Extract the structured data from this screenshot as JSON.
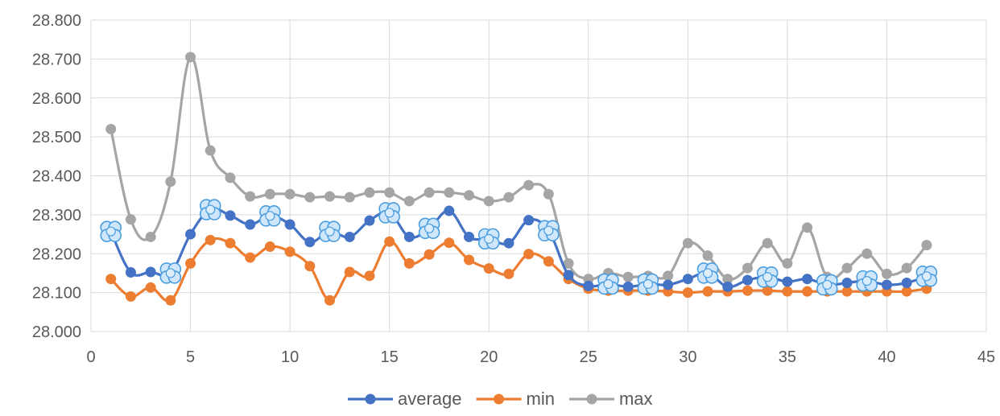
{
  "chart_data": {
    "type": "line",
    "title": "",
    "xlabel": "",
    "ylabel": "",
    "xlim": [
      0,
      45
    ],
    "ylim": [
      28.0,
      28.8
    ],
    "x_ticks": [
      0,
      5,
      10,
      15,
      20,
      25,
      30,
      35,
      40,
      45
    ],
    "y_ticks": [
      "28.000",
      "28.100",
      "28.200",
      "28.300",
      "28.400",
      "28.500",
      "28.600",
      "28.700",
      "28.800"
    ],
    "y_tick_values": [
      28.0,
      28.1,
      28.2,
      28.3,
      28.4,
      28.5,
      28.6,
      28.7,
      28.8
    ],
    "grid": true,
    "legend_position": "bottom",
    "x": [
      1,
      2,
      3,
      4,
      5,
      6,
      7,
      8,
      9,
      10,
      11,
      12,
      13,
      14,
      15,
      16,
      17,
      18,
      19,
      20,
      21,
      22,
      23,
      24,
      25,
      26,
      27,
      28,
      29,
      30,
      31,
      32,
      33,
      34,
      35,
      36,
      37,
      38,
      39,
      40,
      41,
      42
    ],
    "series": [
      {
        "name": "average",
        "color": "#4472c4",
        "values": [
          28.257,
          28.152,
          28.153,
          28.15,
          28.25,
          28.313,
          28.298,
          28.275,
          28.297,
          28.275,
          28.23,
          28.257,
          28.243,
          28.285,
          28.305,
          28.243,
          28.265,
          28.31,
          28.243,
          28.238,
          28.227,
          28.286,
          28.259,
          28.145,
          28.117,
          28.122,
          28.115,
          28.122,
          28.12,
          28.135,
          28.15,
          28.115,
          28.132,
          28.14,
          28.128,
          28.135,
          28.12,
          28.125,
          28.13,
          28.12,
          28.125,
          28.142
        ]
      },
      {
        "name": "min",
        "color": "#ed7d31",
        "values": [
          28.135,
          28.09,
          28.113,
          28.08,
          28.175,
          28.235,
          28.227,
          28.19,
          28.218,
          28.205,
          28.168,
          28.08,
          28.153,
          28.143,
          28.231,
          28.175,
          28.198,
          28.228,
          28.184,
          28.162,
          28.148,
          28.199,
          28.18,
          28.135,
          28.11,
          28.105,
          28.105,
          28.105,
          28.103,
          28.1,
          28.103,
          28.103,
          28.105,
          28.105,
          28.103,
          28.103,
          28.103,
          28.103,
          28.103,
          28.103,
          28.103,
          28.11
        ]
      },
      {
        "name": "max",
        "color": "#a5a5a5",
        "values": [
          28.52,
          28.288,
          28.243,
          28.385,
          28.705,
          28.465,
          28.395,
          28.347,
          28.353,
          28.353,
          28.345,
          28.347,
          28.345,
          28.357,
          28.357,
          28.335,
          28.357,
          28.357,
          28.35,
          28.335,
          28.345,
          28.376,
          28.353,
          28.175,
          28.135,
          28.15,
          28.14,
          28.143,
          28.143,
          28.227,
          28.195,
          28.135,
          28.163,
          28.227,
          28.175,
          28.267,
          28.14,
          28.163,
          28.2,
          28.148,
          28.163,
          28.222
        ]
      }
    ],
    "highlighted_points": [
      1,
      4,
      6,
      9,
      12,
      15,
      17,
      20,
      23,
      26,
      28,
      31,
      34,
      37,
      39,
      42
    ]
  }
}
